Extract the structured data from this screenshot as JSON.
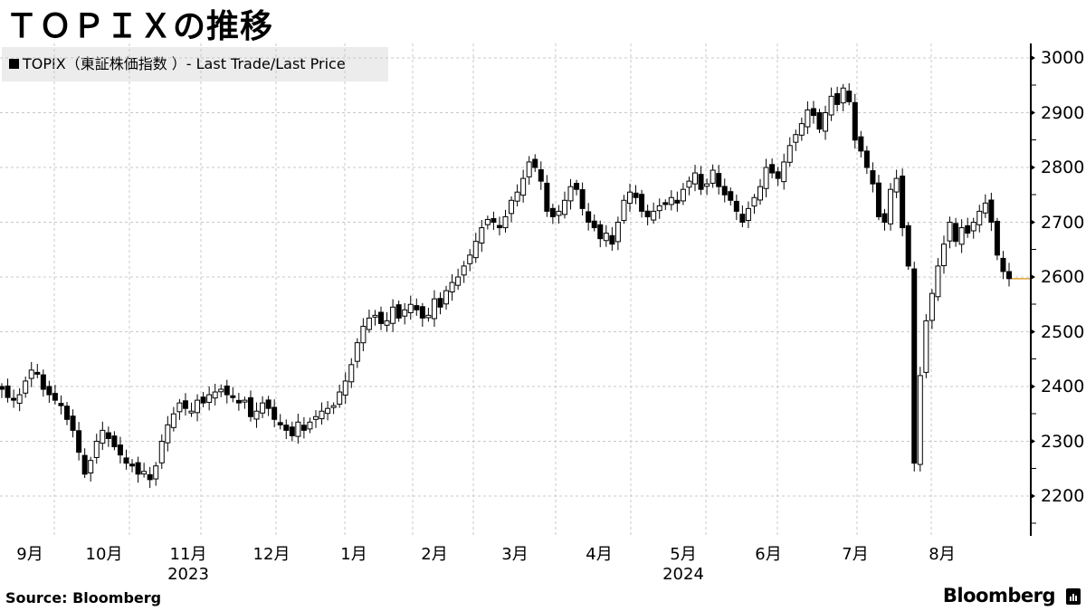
{
  "header": {
    "title": "ＴＯＰＩＸの推移"
  },
  "legend": {
    "label": "TOPIX（東証株価指数 ）- Last Trade/Last Price",
    "marker_color": "#000000"
  },
  "footer": {
    "source": "Source:  Bloomberg",
    "brand": "Bloomberg"
  },
  "colors": {
    "up_candle_fill": "#ffffff",
    "down_candle_fill": "#000000",
    "last_price_line": "#e0a030",
    "grid": "#c8c8c8"
  },
  "chart_data": {
    "type": "candlestick",
    "title": "ＴＯＰＩＸの推移",
    "series_name": "TOPIX（東証株価指数 ）- Last Trade/Last Price",
    "xlabel": "",
    "ylabel": "",
    "y_axis_position": "right",
    "ylim": [
      2120,
      3020
    ],
    "yticks": [
      2200,
      2300,
      2400,
      2500,
      2600,
      2700,
      2800,
      2900,
      3000
    ],
    "x_tick_labels": [
      "9月",
      "10月",
      "11月",
      "12月",
      "1月",
      "2月",
      "3月",
      "4月",
      "5月",
      "6月",
      "7月",
      "8月"
    ],
    "year_labels": [
      {
        "label": "2023",
        "under": "11月"
      },
      {
        "label": "2024",
        "under": "5月"
      }
    ],
    "grid": true,
    "legend_position": "top-left",
    "last_price": 2597,
    "approx_monthly_close": [
      {
        "month": "2023-08",
        "close": 2330
      },
      {
        "month": "2023-09",
        "close": 2323
      },
      {
        "month": "2023-10",
        "close": 2254
      },
      {
        "month": "2023-11",
        "close": 2375
      },
      {
        "month": "2023-12",
        "close": 2366
      },
      {
        "month": "2024-01",
        "close": 2551
      },
      {
        "month": "2024-02",
        "close": 2676
      },
      {
        "month": "2024-03",
        "close": 2769
      },
      {
        "month": "2024-04",
        "close": 2743
      },
      {
        "month": "2024-05",
        "close": 2772
      },
      {
        "month": "2024-06",
        "close": 2810
      },
      {
        "month": "2024-07",
        "close": 2795
      },
      {
        "month": "2024-08",
        "close": 2712
      }
    ],
    "notable_points": [
      {
        "label": "high",
        "date": "2024-07",
        "value": 2946
      },
      {
        "label": "low",
        "date": "2024-08",
        "value": 2200
      },
      {
        "label": "last",
        "date": "2024-09",
        "value": 2597
      }
    ],
    "candles_close_path": [
      2395,
      2380,
      2375,
      2385,
      2410,
      2430,
      2425,
      2395,
      2385,
      2375,
      2365,
      2340,
      2320,
      2280,
      2240,
      2265,
      2300,
      2320,
      2305,
      2290,
      2275,
      2260,
      2255,
      2240,
      2245,
      2230,
      2255,
      2300,
      2330,
      2350,
      2370,
      2360,
      2355,
      2375,
      2370,
      2385,
      2390,
      2395,
      2385,
      2380,
      2370,
      2375,
      2345,
      2355,
      2370,
      2360,
      2340,
      2330,
      2320,
      2310,
      2335,
      2320,
      2335,
      2345,
      2355,
      2360,
      2365,
      2390,
      2410,
      2440,
      2480,
      2510,
      2525,
      2530,
      2515,
      2520,
      2545,
      2525,
      2540,
      2550,
      2540,
      2525,
      2530,
      2560,
      2545,
      2575,
      2590,
      2600,
      2620,
      2640,
      2665,
      2690,
      2705,
      2700,
      2690,
      2710,
      2740,
      2755,
      2780,
      2810,
      2800,
      2775,
      2720,
      2710,
      2720,
      2740,
      2765,
      2760,
      2725,
      2700,
      2690,
      2670,
      2680,
      2660,
      2700,
      2740,
      2755,
      2745,
      2720,
      2710,
      2720,
      2730,
      2735,
      2745,
      2735,
      2760,
      2775,
      2790,
      2760,
      2770,
      2795,
      2765,
      2750,
      2740,
      2720,
      2700,
      2725,
      2745,
      2765,
      2800,
      2790,
      2780,
      2810,
      2840,
      2860,
      2880,
      2905,
      2895,
      2870,
      2900,
      2930,
      2915,
      2945,
      2920,
      2850,
      2830,
      2800,
      2770,
      2710,
      2700,
      2760,
      2780,
      2690,
      2620,
      2260,
      2420,
      2520,
      2570,
      2620,
      2660,
      2700,
      2665,
      2690,
      2680,
      2700,
      2720,
      2735,
      2700,
      2640,
      2610,
      2597
    ]
  }
}
